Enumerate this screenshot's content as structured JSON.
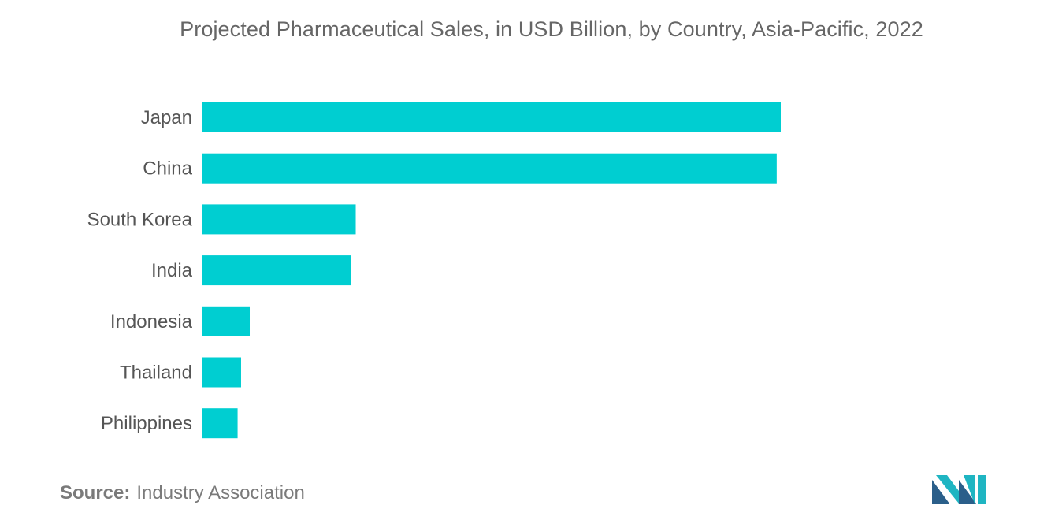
{
  "chart_data": {
    "type": "bar",
    "orientation": "horizontal",
    "title": "Projected Pharmaceutical Sales, in USD Billion, by Country, Asia-Pacific, 2022",
    "categories": [
      "Japan",
      "China",
      "South Korea",
      "India",
      "Indonesia",
      "Thailand",
      "Philippines"
    ],
    "values": [
      100,
      99.3,
      26.6,
      25.8,
      8.3,
      6.8,
      6.2
    ],
    "xlim": [
      0,
      100
    ],
    "xlabel": "",
    "ylabel": "",
    "grid": false,
    "legend": "none",
    "bar_color": "#00CED1"
  },
  "source": {
    "label": "Source:",
    "text": "Industry Association"
  },
  "logo": {
    "icon": "mordor-intelligence-logo-icon",
    "colors": [
      "#2B5F8A",
      "#1FB5C2"
    ]
  }
}
